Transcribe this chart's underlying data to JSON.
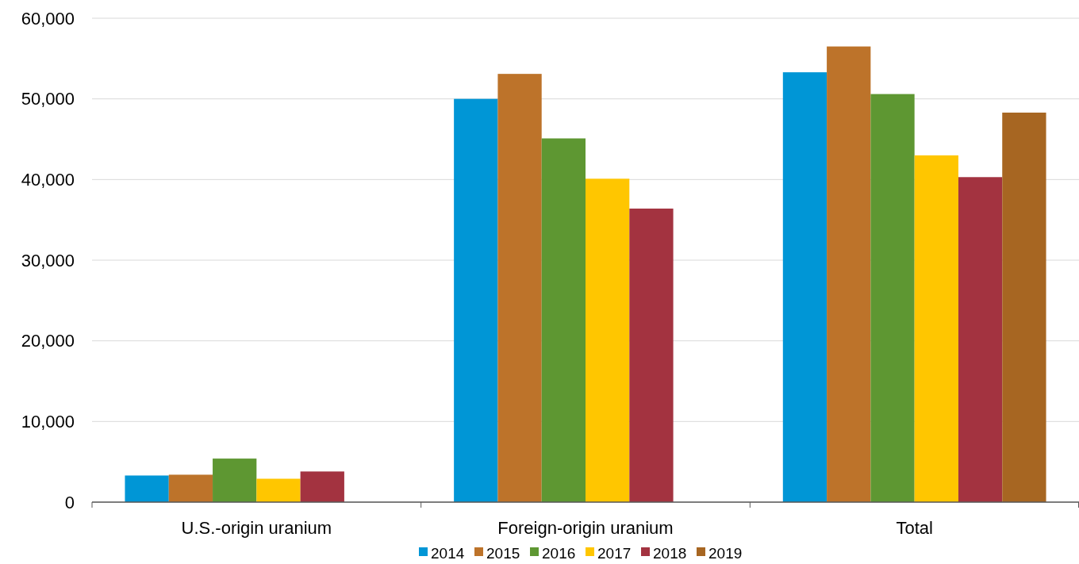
{
  "chart_data": {
    "type": "bar",
    "categories": [
      "U.S.-origin uranium",
      "Foreign-origin uranium",
      "Total"
    ],
    "series": [
      {
        "name": "2014",
        "color": "#0096d6",
        "values": [
          3300,
          50000,
          53300
        ]
      },
      {
        "name": "2015",
        "color": "#bd732a",
        "values": [
          3400,
          53100,
          56500
        ]
      },
      {
        "name": "2016",
        "color": "#5e9732",
        "values": [
          5400,
          45100,
          50600
        ]
      },
      {
        "name": "2017",
        "color": "#ffc600",
        "values": [
          2900,
          40100,
          43000
        ]
      },
      {
        "name": "2018",
        "color": "#a33340",
        "values": [
          3800,
          36400,
          40300
        ]
      },
      {
        "name": "2019",
        "color": "#a76622",
        "values": [
          null,
          null,
          48300
        ]
      }
    ],
    "ylim": [
      0,
      60000
    ],
    "yticks": [
      {
        "value": 0,
        "label": "0"
      },
      {
        "value": 10000,
        "label": "10,000"
      },
      {
        "value": 20000,
        "label": "20,000"
      },
      {
        "value": 30000,
        "label": "30,000"
      },
      {
        "value": 40000,
        "label": "40,000"
      },
      {
        "value": 50000,
        "label": "50,000"
      },
      {
        "value": 60000,
        "label": "60,000"
      }
    ],
    "grid": "y",
    "legend": "bottom"
  }
}
